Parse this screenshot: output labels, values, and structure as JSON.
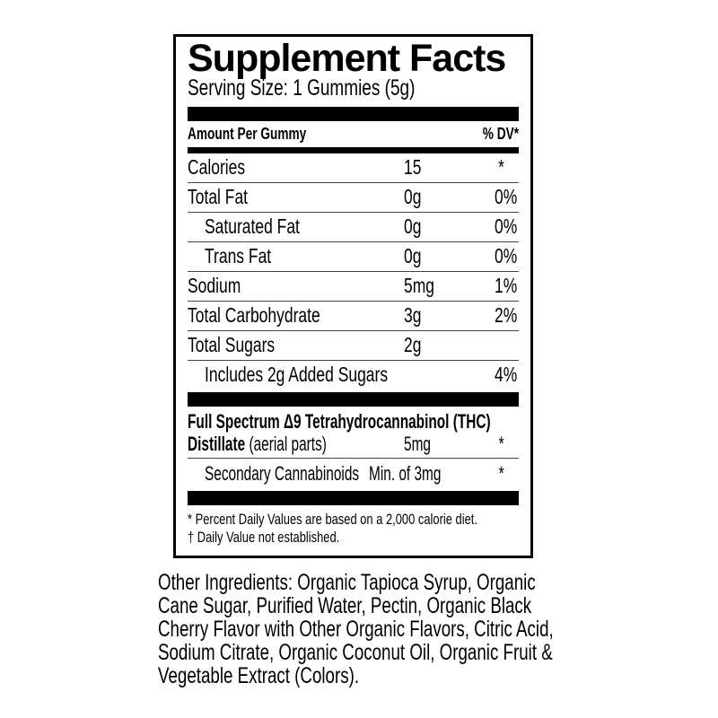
{
  "colors": {
    "text": "#000000",
    "background": "#ffffff",
    "bar": "#000000"
  },
  "label": {
    "title": "Supplement Facts",
    "serving_size": "Serving Size: 1 Gummies (5g)",
    "columns": {
      "amount_header": "Amount Per Gummy",
      "dv_header": "% DV*"
    },
    "rows": [
      {
        "name": "Calories",
        "amount": "15",
        "dv": "*"
      },
      {
        "name": "Total Fat",
        "amount": "0g",
        "dv": "0%"
      },
      {
        "name": "Saturated Fat",
        "amount": "0g",
        "dv": "0%"
      },
      {
        "name": "Trans Fat",
        "amount": "0g",
        "dv": "0%"
      },
      {
        "name": "Sodium",
        "amount": "5mg",
        "dv": "1%"
      },
      {
        "name": "Total Carbohydrate",
        "amount": "3g",
        "dv": "2%"
      },
      {
        "name": "Total Sugars",
        "amount": "2g",
        "dv": ""
      },
      {
        "name": "Includes 2g Added Sugars",
        "amount": "",
        "dv": "4%"
      }
    ],
    "thc": {
      "line1_bold": "Full Spectrum Δ9 Tetrahydrocannabinol (THC)",
      "line2_bold": "Distillate",
      "line2_regular": " (aerial parts)",
      "amount": "5mg",
      "dv": "*",
      "secondary_name": "Secondary Cannabinoids",
      "secondary_amount": "Min. of 3mg",
      "secondary_dv": "*"
    },
    "footnotes": [
      "* Percent Daily Values are based on a 2,000 calorie diet.",
      "† Daily Value not established."
    ]
  },
  "ingredients": {
    "text": "Other Ingredients: Organic Tapioca Syrup, Organic Cane Sugar, Purified Water, Pectin, Organic Black Cherry Flavor with Other Organic Flavors, Citric Acid, Sodium Citrate, Organic Coconut Oil, Organic Fruit & Vegetable Extract (Colors)."
  }
}
